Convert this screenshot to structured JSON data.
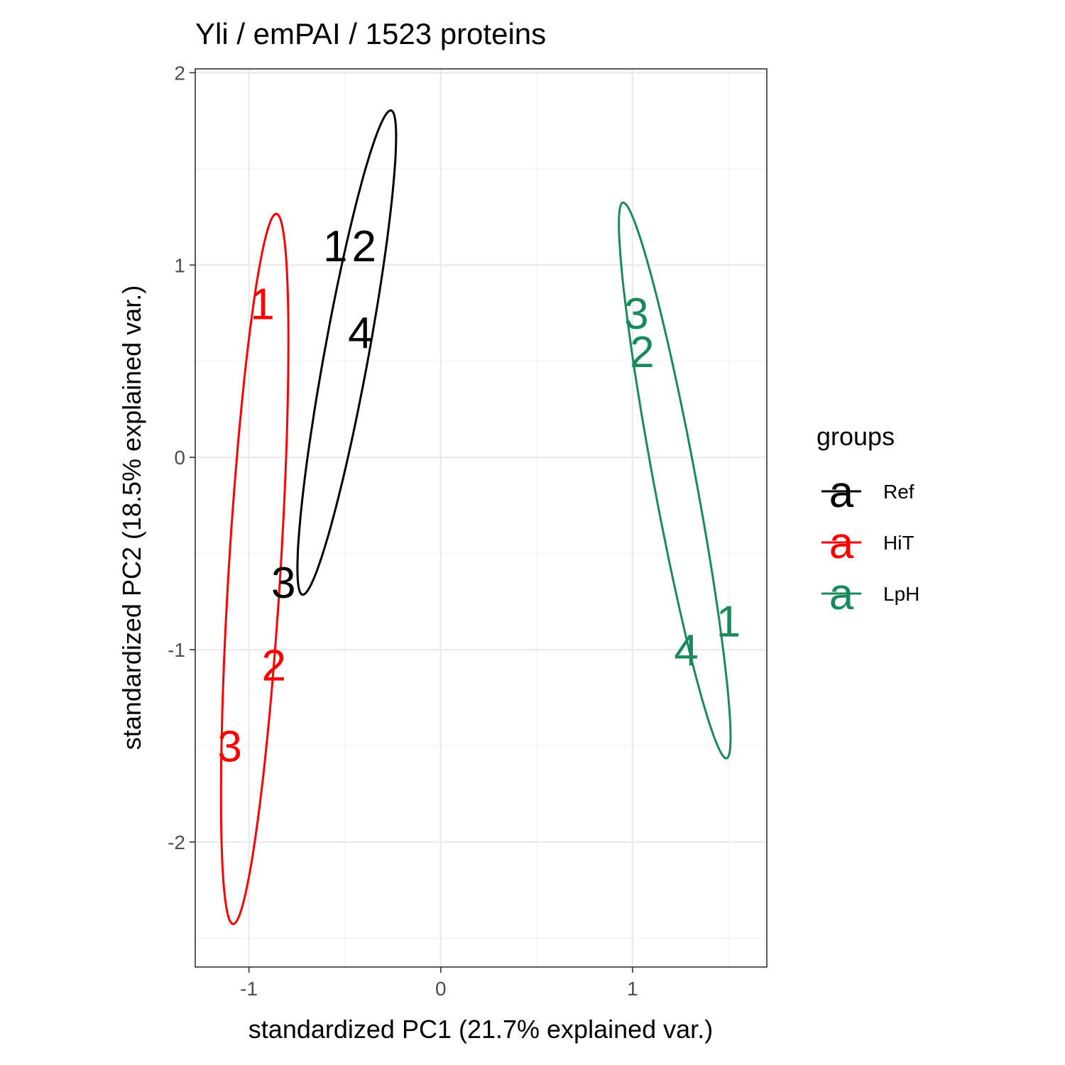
{
  "chart_data": {
    "type": "scatter",
    "title": "Yli / emPAI / 1523  proteins",
    "xlabel": "standardized PC1 (21.7% explained var.)",
    "ylabel": "standardized PC2 (18.5% explained var.)",
    "xlim": [
      -1.28,
      1.7
    ],
    "ylim": [
      -2.65,
      2.02
    ],
    "x_ticks": [
      -1,
      0,
      1
    ],
    "x_tick_labels": [
      "-1",
      "0",
      "1"
    ],
    "y_ticks": [
      -2,
      -1,
      0,
      1,
      2
    ],
    "y_tick_labels": [
      "-2",
      "-1",
      "0",
      "1",
      "2"
    ],
    "grid": true,
    "legend": {
      "title": "groups",
      "placement": "right",
      "key_glyph": "a"
    },
    "series": [
      {
        "name": "Ref",
        "color": "#000000",
        "points": [
          {
            "label": "1",
            "x": -0.55,
            "y": 1.1
          },
          {
            "label": "2",
            "x": -0.4,
            "y": 1.1
          },
          {
            "label": "3",
            "x": -0.82,
            "y": -0.65
          },
          {
            "label": "4",
            "x": -0.42,
            "y": 0.65
          }
        ],
        "ellipse": {
          "cx": -0.49,
          "cy": 0.545,
          "a": 1.28,
          "b": 0.115,
          "angle_deg": 79.6
        }
      },
      {
        "name": "HiT",
        "color": "#ff0000",
        "points": [
          {
            "label": "1",
            "x": -0.93,
            "y": 0.8
          },
          {
            "label": "2",
            "x": -0.87,
            "y": -1.08
          },
          {
            "label": "3",
            "x": -1.1,
            "y": -1.5
          }
        ],
        "ellipse": {
          "cx": -0.97,
          "cy": -0.58,
          "a": 1.85,
          "b": 0.135,
          "angle_deg": 86.5
        }
      },
      {
        "name": "LpH",
        "color": "#1b8a5a",
        "points": [
          {
            "label": "1",
            "x": 1.5,
            "y": -0.85
          },
          {
            "label": "2",
            "x": 1.05,
            "y": 0.55
          },
          {
            "label": "3",
            "x": 1.02,
            "y": 0.75
          },
          {
            "label": "4",
            "x": 1.28,
            "y": -1.0
          }
        ],
        "ellipse": {
          "cx": 1.22,
          "cy": -0.12,
          "a": 1.47,
          "b": 0.11,
          "angle_deg": -79.4
        }
      }
    ]
  }
}
